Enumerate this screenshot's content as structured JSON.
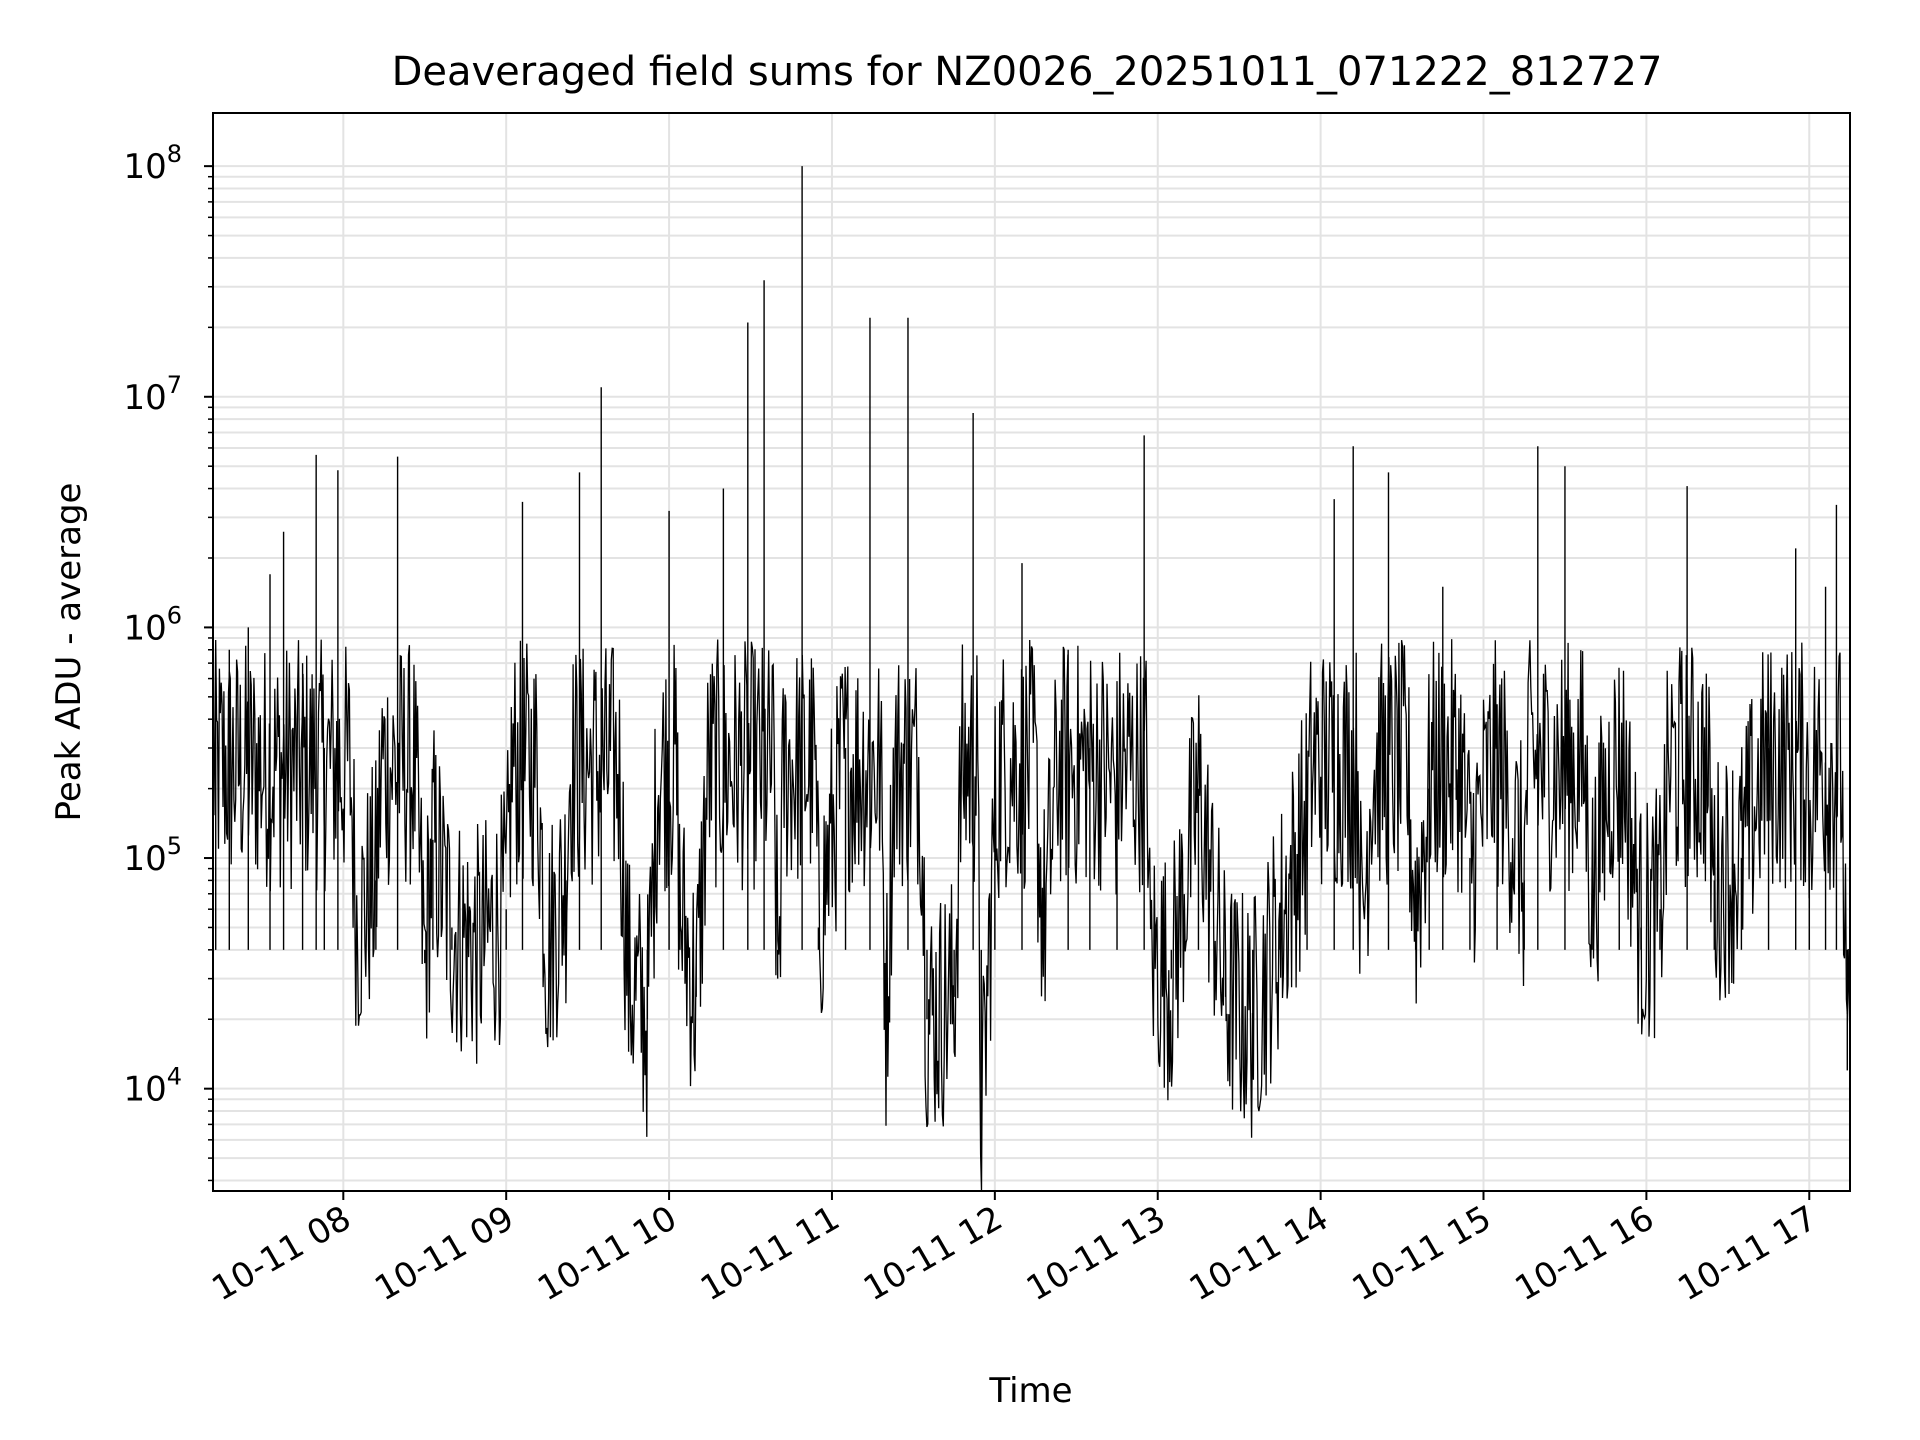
{
  "chart_data": {
    "type": "line",
    "title": "Deaveraged field sums for NZ0026_20251011_071222_812727",
    "xlabel": "Time",
    "ylabel": "Peak ADU - average",
    "yscale": "log",
    "xlim": [
      "2025-10-11 07:12",
      "2025-10-11 17:15"
    ],
    "ylim": [
      3600,
      170000000
    ],
    "grid": true,
    "legend": "none",
    "x_ticks": [
      "10-11 08",
      "10-11 09",
      "10-11 10",
      "10-11 11",
      "10-11 12",
      "10-11 13",
      "10-11 14",
      "10-11 15",
      "10-11 16",
      "10-11 17"
    ],
    "y_ticks": [
      {
        "base": "10",
        "exp": "4",
        "value": 10000
      },
      {
        "base": "10",
        "exp": "5",
        "value": 100000
      },
      {
        "base": "10",
        "exp": "6",
        "value": 1000000
      },
      {
        "base": "10",
        "exp": "7",
        "value": 10000000
      },
      {
        "base": "10",
        "exp": "8",
        "value": 100000000
      }
    ],
    "series": [
      {
        "color": "#000000",
        "x": [
          "2025-10-11 07:13",
          "2025-10-11 07:18",
          "2025-10-11 07:25",
          "2025-10-11 07:33",
          "2025-10-11 07:38",
          "2025-10-11 07:45",
          "2025-10-11 07:50",
          "2025-10-11 07:53",
          "2025-10-11 07:58",
          "2025-10-11 08:05",
          "2025-10-11 08:12",
          "2025-10-11 08:20",
          "2025-10-11 08:30",
          "2025-10-11 08:33",
          "2025-10-11 08:40",
          "2025-10-11 08:50",
          "2025-10-11 09:00",
          "2025-10-11 09:06",
          "2025-10-11 09:15",
          "2025-10-11 09:22",
          "2025-10-11 09:27",
          "2025-10-11 09:35",
          "2025-10-11 09:45",
          "2025-10-11 09:52",
          "2025-10-11 10:00",
          "2025-10-11 10:04",
          "2025-10-11 10:10",
          "2025-10-11 10:20",
          "2025-10-11 10:29",
          "2025-10-11 10:35",
          "2025-10-11 10:40",
          "2025-10-11 10:49",
          "2025-10-11 10:55",
          "2025-10-11 11:05",
          "2025-10-11 11:14",
          "2025-10-11 11:20",
          "2025-10-11 11:28",
          "2025-10-11 11:35",
          "2025-10-11 11:45",
          "2025-10-11 11:52",
          "2025-10-11 11:55",
          "2025-10-11 12:00",
          "2025-10-11 12:10",
          "2025-10-11 12:18",
          "2025-10-11 12:27",
          "2025-10-11 12:35",
          "2025-10-11 12:45",
          "2025-10-11 12:55",
          "2025-10-11 12:57",
          "2025-10-11 13:05",
          "2025-10-11 13:15",
          "2025-10-11 13:25",
          "2025-10-11 13:35",
          "2025-10-11 13:45",
          "2025-10-11 13:55",
          "2025-10-11 14:05",
          "2025-10-11 14:12",
          "2025-10-11 14:15",
          "2025-10-11 14:25",
          "2025-10-11 14:35",
          "2025-10-11 14:40",
          "2025-10-11 14:45",
          "2025-10-11 14:55",
          "2025-10-11 15:05",
          "2025-10-11 15:15",
          "2025-10-11 15:20",
          "2025-10-11 15:30",
          "2025-10-11 15:40",
          "2025-10-11 15:50",
          "2025-10-11 15:58",
          "2025-10-11 16:05",
          "2025-10-11 16:15",
          "2025-10-11 16:25",
          "2025-10-11 16:35",
          "2025-10-11 16:45",
          "2025-10-11 16:55",
          "2025-10-11 17:00",
          "2025-10-11 17:06",
          "2025-10-11 17:10",
          "2025-10-11 17:14"
        ],
        "y": [
          600000,
          800000,
          1000000,
          1700000,
          2600000,
          700000,
          5600000,
          300000,
          4800000,
          50000,
          80000,
          5500000,
          35000,
          120000,
          50000,
          40000,
          60000,
          3500000,
          40000,
          80000,
          4700000,
          11000000,
          30000,
          20000,
          3200000,
          60000,
          25000,
          4000000,
          21000000,
          32000000,
          30000,
          100000000,
          50000,
          300000,
          22000000,
          20000,
          22000000,
          20000,
          25000,
          8500000,
          6000,
          150000,
          1900000,
          50000,
          800000,
          300000,
          200000,
          6800000,
          40000,
          30000,
          200000,
          25000,
          20000,
          50000,
          150000,
          3600000,
          6100000,
          40000,
          4700000,
          60000,
          200000,
          1500000,
          100000,
          300000,
          80000,
          6100000,
          5000000,
          70000,
          400000,
          50000,
          60000,
          4100000,
          80000,
          100000,
          300000,
          2200000,
          150000,
          1500000,
          3400000,
          12000
        ]
      }
    ]
  }
}
